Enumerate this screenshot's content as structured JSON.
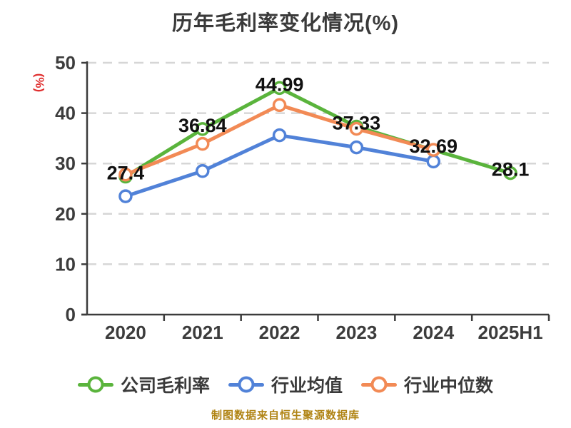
{
  "title": "历年毛利率变化情况(%)",
  "ylabel": "(%)",
  "footer": "制图数据来自恒生聚源数据库",
  "colors": {
    "title_text": "#3a3a3a",
    "axis": "#3c3c3c",
    "tick_text": "#3c3c3c",
    "grid": "#d6d6d6",
    "ylabel_red": "#e03030",
    "footer_gold": "#b08414",
    "data_label": "#111111",
    "series_green": "#5ab43c",
    "series_blue": "#5182d8",
    "series_orange": "#f28a55"
  },
  "legend": {
    "items": [
      {
        "label": "公司毛利率",
        "color": "#5ab43c"
      },
      {
        "label": "行业均值",
        "color": "#5182d8"
      },
      {
        "label": "行业中位数",
        "color": "#f28a55"
      }
    ]
  },
  "chart_data": {
    "type": "line",
    "title": "历年毛利率变化情况(%)",
    "xlabel": "",
    "ylabel": "(%)",
    "categories": [
      "2020",
      "2021",
      "2022",
      "2023",
      "2024",
      "2025H1"
    ],
    "ylim": [
      0,
      50
    ],
    "yticks": [
      0,
      10,
      20,
      30,
      40,
      50
    ],
    "grid": "horizontal-dashed",
    "legend_position": "bottom",
    "series": [
      {
        "name": "公司毛利率",
        "color": "#5ab43c",
        "values": [
          27.4,
          36.84,
          44.99,
          37.33,
          32.69,
          28.1
        ],
        "labels": [
          "27.4",
          "36.84",
          "44.99",
          "37.33",
          "32.69",
          "28.1"
        ]
      },
      {
        "name": "行业均值",
        "color": "#5182d8",
        "values": [
          23.5,
          28.5,
          35.6,
          33.2,
          30.4,
          null
        ]
      },
      {
        "name": "行业中位数",
        "color": "#f28a55",
        "values": [
          27.8,
          33.9,
          41.6,
          36.9,
          32.7,
          null
        ]
      }
    ],
    "source_note": "制图数据来自恒生聚源数据库"
  }
}
